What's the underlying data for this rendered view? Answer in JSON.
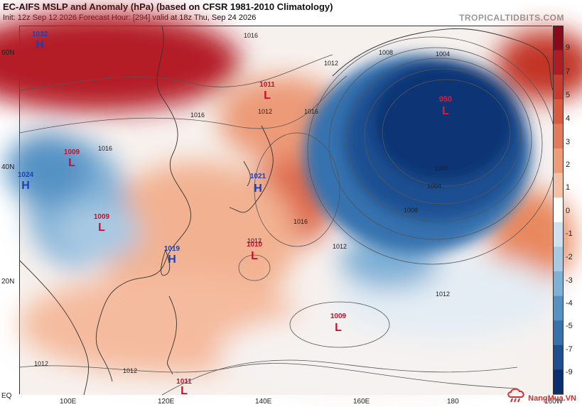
{
  "header": {
    "title": "EC-AIFS MSLP and Anomaly (hPa) (based on CFSR 1981-2010 Climatology)",
    "subtitle": "Init: 12z Sep 12 2026   Forecast Hour: [294]   valid at 18z Thu, Sep 24 2026",
    "brand": "TROPICALTIDBITS.COM"
  },
  "axes": {
    "lat_labels": [
      "60N",
      "40N",
      "20N",
      "EQ"
    ],
    "lon_labels": [
      "100E",
      "120E",
      "140E",
      "160E",
      "180",
      "160W"
    ]
  },
  "colorbar": {
    "labels": [
      "9",
      "7",
      "5",
      "4",
      "3",
      "2",
      "1",
      "0",
      "-1",
      "-2",
      "-3",
      "-4",
      "-5",
      "-7",
      "-9"
    ],
    "colors": [
      "#8b0a1a",
      "#b01c24",
      "#c93a2f",
      "#d95a3f",
      "#e47a57",
      "#ee9c78",
      "#f6c0a4",
      "#ffffff",
      "#cfe0ee",
      "#a8c9e3",
      "#7fb0d6",
      "#5592c4",
      "#3572af",
      "#1d4f92",
      "#0a2f70"
    ]
  },
  "pressure_centers": [
    {
      "type": "H",
      "value": "1032"
    },
    {
      "type": "L",
      "value": "1011"
    },
    {
      "type": "L",
      "value": "1009"
    },
    {
      "type": "H",
      "value": "1024"
    },
    {
      "type": "L",
      "value": "1009"
    },
    {
      "type": "H",
      "value": "1021"
    },
    {
      "type": "H",
      "value": "1019"
    },
    {
      "type": "L",
      "value": "1010"
    },
    {
      "type": "L",
      "value": "950"
    },
    {
      "type": "L",
      "value": "1009"
    },
    {
      "type": "L",
      "value": "1011"
    }
  ],
  "isobar_labels": [
    "1016",
    "1016",
    "1012",
    "1016",
    "1012",
    "1016",
    "1012",
    "1008",
    "1004",
    "1000",
    "1008",
    "1004",
    "1012",
    "1012",
    "1016",
    "1012",
    "1012"
  ],
  "watermark": "NangMua.VN"
}
